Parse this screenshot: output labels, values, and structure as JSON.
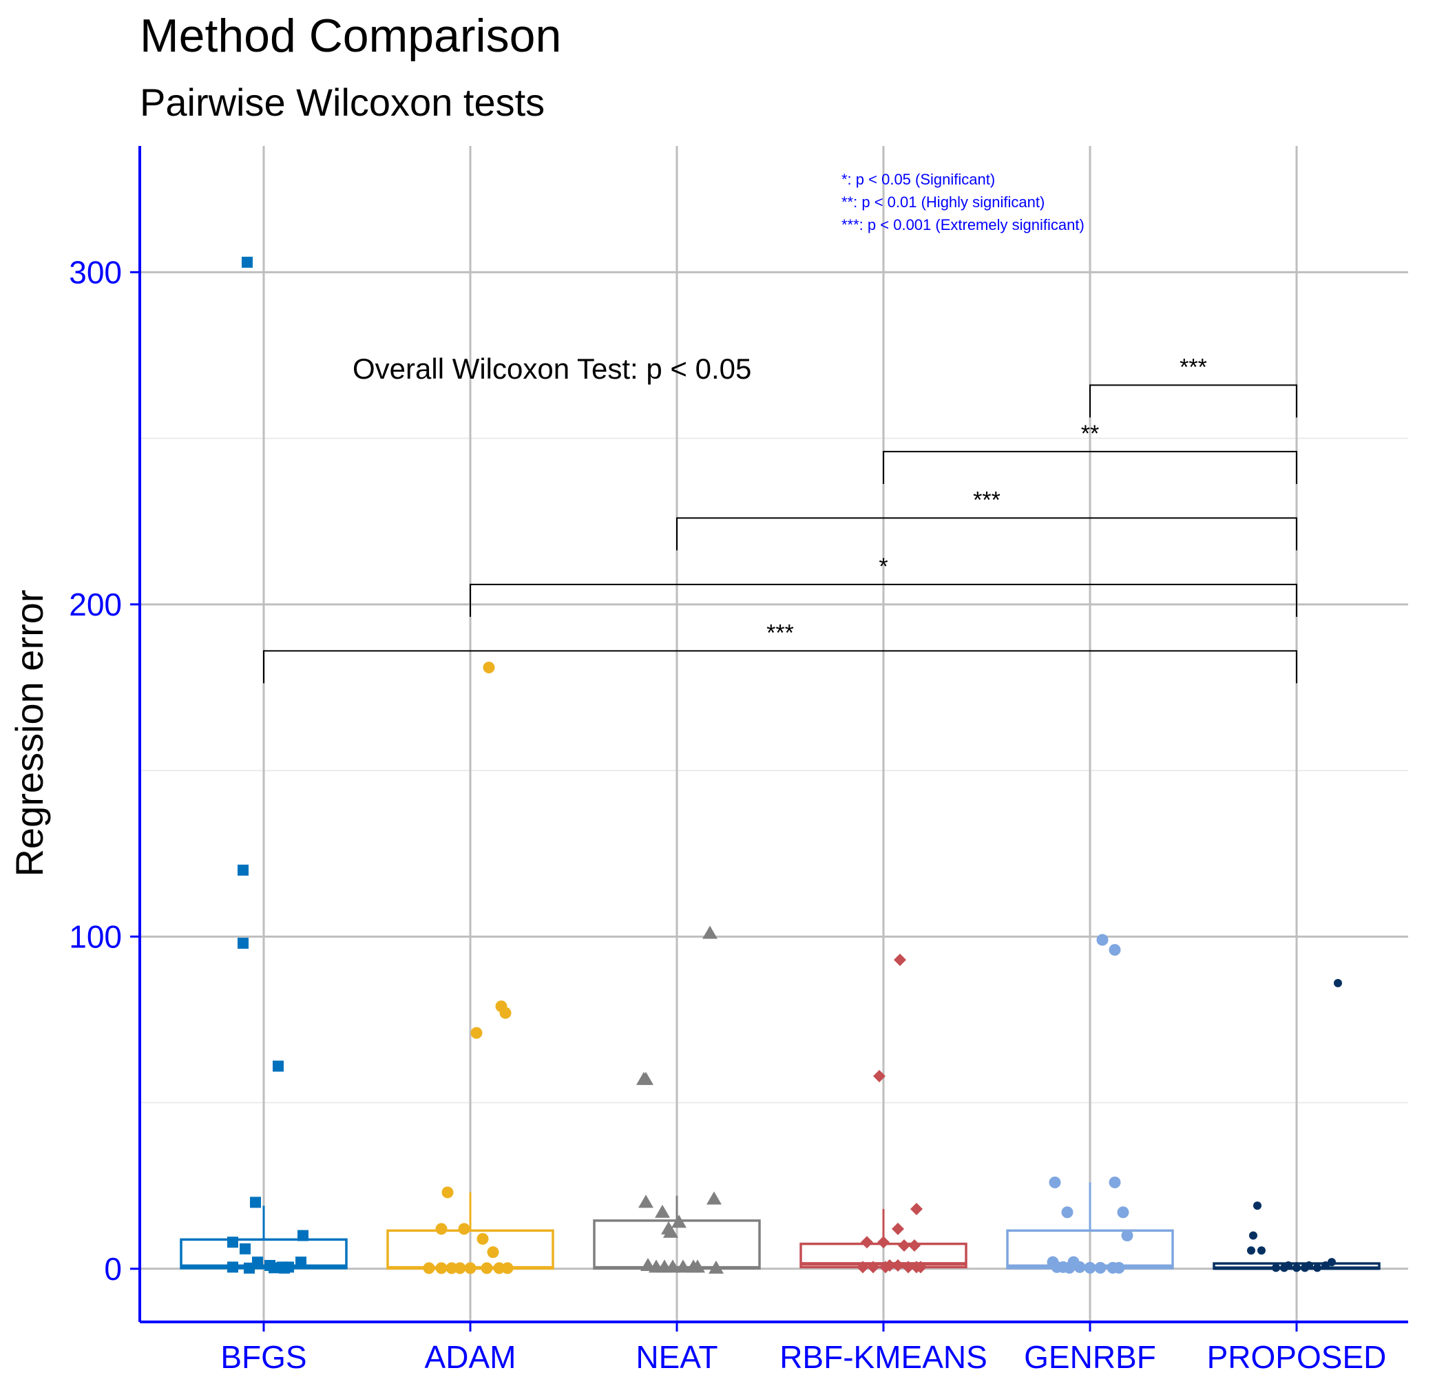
{
  "chart_data": {
    "type": "box",
    "title": "Method Comparison",
    "subtitle": "Pairwise Wilcoxon tests",
    "xlabel": "",
    "ylabel": "Regression error",
    "ylim": [
      -16,
      338
    ],
    "yticks": [
      0,
      100,
      200,
      300
    ],
    "categories": [
      "BFGS",
      "ADAM",
      "NEAT",
      "RBF-KMEANS",
      "GENRBF",
      "PROPOSED"
    ],
    "colors": {
      "BFGS": "#0072BD",
      "ADAM": "#EDB120",
      "NEAT": "#7F7F7F",
      "RBF-KMEANS": "#C44E52",
      "GENRBF": "#7EA6E0",
      "PROPOSED": "#053061",
      "axis": "#0000FF",
      "grid": "#BEBEBE"
    },
    "markers": {
      "BFGS": "square",
      "ADAM": "circle",
      "NEAT": "triangle",
      "RBF-KMEANS": "diamond",
      "GENRBF": "circle",
      "PROPOSED": "circle-small"
    },
    "boxes": [
      {
        "name": "BFGS",
        "q1": 0.2,
        "median": 0.8,
        "q3": 8.8,
        "whisker_low": 0,
        "whisker_high": 19
      },
      {
        "name": "ADAM",
        "q1": 0.1,
        "median": 0.3,
        "q3": 11.5,
        "whisker_low": 0,
        "whisker_high": 23
      },
      {
        "name": "NEAT",
        "q1": 0.1,
        "median": 0.3,
        "q3": 14.5,
        "whisker_low": 0,
        "whisker_high": 22
      },
      {
        "name": "RBF-KMEANS",
        "q1": 0.5,
        "median": 1.5,
        "q3": 7.5,
        "whisker_low": 0,
        "whisker_high": 18
      },
      {
        "name": "GENRBF",
        "q1": 0.2,
        "median": 0.8,
        "q3": 11.5,
        "whisker_low": 0,
        "whisker_high": 26
      },
      {
        "name": "PROPOSED",
        "q1": 0.05,
        "median": 0.2,
        "q3": 1.6,
        "whisker_low": 0,
        "whisker_high": 2
      }
    ],
    "points": {
      "BFGS": [
        [
          -0.08,
          303
        ],
        [
          -0.1,
          120
        ],
        [
          -0.1,
          98
        ],
        [
          0.07,
          61
        ],
        [
          -0.04,
          20
        ],
        [
          0.19,
          10
        ],
        [
          -0.15,
          8
        ],
        [
          -0.09,
          6
        ],
        [
          0.18,
          2
        ],
        [
          -0.03,
          2
        ],
        [
          0.03,
          1
        ],
        [
          0.09,
          0.5
        ],
        [
          0.12,
          0.5
        ],
        [
          -0.15,
          0.5
        ],
        [
          -0.07,
          0.2
        ],
        [
          0.05,
          0.3
        ],
        [
          0.1,
          0.2
        ]
      ],
      "ADAM": [
        [
          0.09,
          181
        ],
        [
          0.15,
          79
        ],
        [
          0.17,
          77
        ],
        [
          0.03,
          71
        ],
        [
          -0.11,
          23
        ],
        [
          -0.14,
          12
        ],
        [
          -0.03,
          12
        ],
        [
          0.06,
          9
        ],
        [
          0.11,
          5
        ],
        [
          -0.2,
          0.2
        ],
        [
          -0.14,
          0.2
        ],
        [
          -0.09,
          0.2
        ],
        [
          -0.05,
          0.2
        ],
        [
          0.0,
          0.2
        ],
        [
          0.08,
          0.2
        ],
        [
          0.14,
          0.2
        ],
        [
          0.18,
          0.2
        ]
      ],
      "NEAT": [
        [
          0.16,
          101
        ],
        [
          -0.15,
          57
        ],
        [
          -0.16,
          57
        ],
        [
          -0.15,
          20
        ],
        [
          -0.07,
          17
        ],
        [
          -0.04,
          12
        ],
        [
          0.01,
          14
        ],
        [
          -0.03,
          11
        ],
        [
          0.18,
          21
        ],
        [
          -0.14,
          1
        ],
        [
          -0.1,
          0.5
        ],
        [
          -0.06,
          0.5
        ],
        [
          -0.02,
          0.5
        ],
        [
          0.03,
          0.5
        ],
        [
          0.08,
          0.5
        ],
        [
          0.1,
          0.5
        ],
        [
          0.19,
          0.2
        ]
      ],
      "RBF-KMEANS": [
        [
          0.08,
          93
        ],
        [
          -0.02,
          58
        ],
        [
          0.16,
          18
        ],
        [
          0.07,
          12
        ],
        [
          -0.08,
          8
        ],
        [
          0.0,
          8
        ],
        [
          0.1,
          7
        ],
        [
          0.15,
          7
        ],
        [
          -0.1,
          0.5
        ],
        [
          -0.05,
          0.5
        ],
        [
          0.01,
          0.5
        ],
        [
          0.03,
          1
        ],
        [
          0.07,
          1
        ],
        [
          0.12,
          0.5
        ],
        [
          0.16,
          0.5
        ],
        [
          0.18,
          0.5
        ]
      ],
      "GENRBF": [
        [
          0.06,
          99
        ],
        [
          0.12,
          96
        ],
        [
          -0.17,
          26
        ],
        [
          0.12,
          26
        ],
        [
          -0.11,
          17
        ],
        [
          0.16,
          17
        ],
        [
          0.18,
          10
        ],
        [
          -0.18,
          2
        ],
        [
          -0.08,
          2
        ],
        [
          -0.16,
          0.5
        ],
        [
          -0.13,
          0.5
        ],
        [
          -0.1,
          0.3
        ],
        [
          -0.05,
          0.5
        ],
        [
          0.0,
          0.3
        ],
        [
          0.05,
          0.3
        ],
        [
          0.11,
          0.3
        ],
        [
          0.14,
          0.3
        ]
      ],
      "PROPOSED": [
        [
          0.2,
          86
        ],
        [
          -0.19,
          19
        ],
        [
          -0.21,
          10
        ],
        [
          -0.22,
          5.5
        ],
        [
          -0.17,
          5.5
        ],
        [
          -0.04,
          1
        ],
        [
          0.06,
          1
        ],
        [
          0.14,
          1
        ],
        [
          0.17,
          2
        ],
        [
          -0.1,
          0.3
        ],
        [
          -0.06,
          0.3
        ],
        [
          0.0,
          0.3
        ],
        [
          0.04,
          0.3
        ],
        [
          0.1,
          0.3
        ]
      ]
    },
    "comparisons": [
      {
        "from": "GENRBF",
        "to": "PROPOSED",
        "y": 266,
        "label": "***"
      },
      {
        "from": "RBF-KMEANS",
        "to": "PROPOSED",
        "y": 246,
        "label": "**"
      },
      {
        "from": "NEAT",
        "to": "PROPOSED",
        "y": 226,
        "label": "***"
      },
      {
        "from": "ADAM",
        "to": "PROPOSED",
        "y": 206,
        "label": "*"
      },
      {
        "from": "BFGS",
        "to": "PROPOSED",
        "y": 186,
        "label": "***"
      }
    ],
    "annotation": "Overall Wilcoxon Test: p < 0.05",
    "legend_notes": [
      "*: p < 0.05 (Significant)",
      "**: p < 0.01 (Highly significant)",
      "***: p < 0.001 (Extremely significant)"
    ]
  }
}
